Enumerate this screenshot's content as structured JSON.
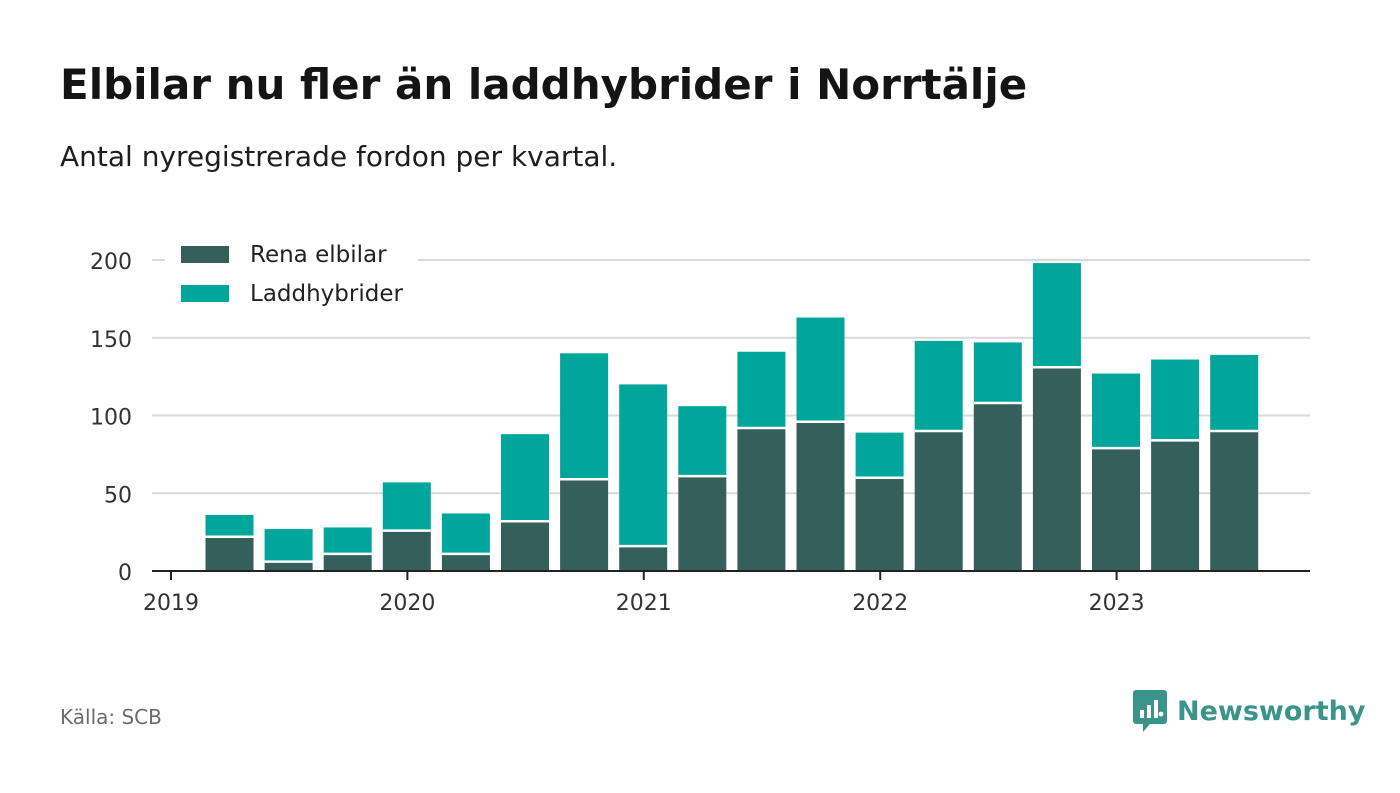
{
  "title": "Elbilar nu fler än laddhybrider i Norrtälje",
  "subtitle": "Antal nyregistrerade fordon per kvartal.",
  "source": "Källa: SCB",
  "brand": "Newsworthy",
  "colors": {
    "elbilar": "#355f5b",
    "laddhybrider": "#00a59b",
    "grid": "#d9d9d9",
    "axis": "#222222",
    "brand": "#3a948a"
  },
  "chart_data": {
    "type": "bar",
    "stacked": true,
    "categories": [
      "2019 Q2",
      "2019 Q3",
      "2019 Q4",
      "2020 Q1",
      "2020 Q2",
      "2020 Q3",
      "2020 Q4",
      "2021 Q1",
      "2021 Q2",
      "2021 Q3",
      "2021 Q4",
      "2022 Q1",
      "2022 Q2",
      "2022 Q3",
      "2022 Q4",
      "2023 Q1",
      "2023 Q2",
      "2023 Q3"
    ],
    "series": [
      {
        "name": "Rena elbilar",
        "values": [
          22,
          6,
          11,
          26,
          11,
          32,
          59,
          16,
          61,
          92,
          96,
          60,
          90,
          108,
          131,
          79,
          84,
          90
        ]
      },
      {
        "name": "Laddhybrider",
        "values": [
          14,
          21,
          17,
          31,
          26,
          56,
          81,
          104,
          45,
          49,
          67,
          29,
          58,
          39,
          67,
          48,
          52,
          49
        ]
      }
    ],
    "xticks": [
      "2019",
      "2020",
      "2021",
      "2022",
      "2023"
    ],
    "yticks": [
      0,
      50,
      100,
      150,
      200
    ],
    "ylim": [
      0,
      210
    ],
    "legend_position": "top-left",
    "grid": true
  }
}
